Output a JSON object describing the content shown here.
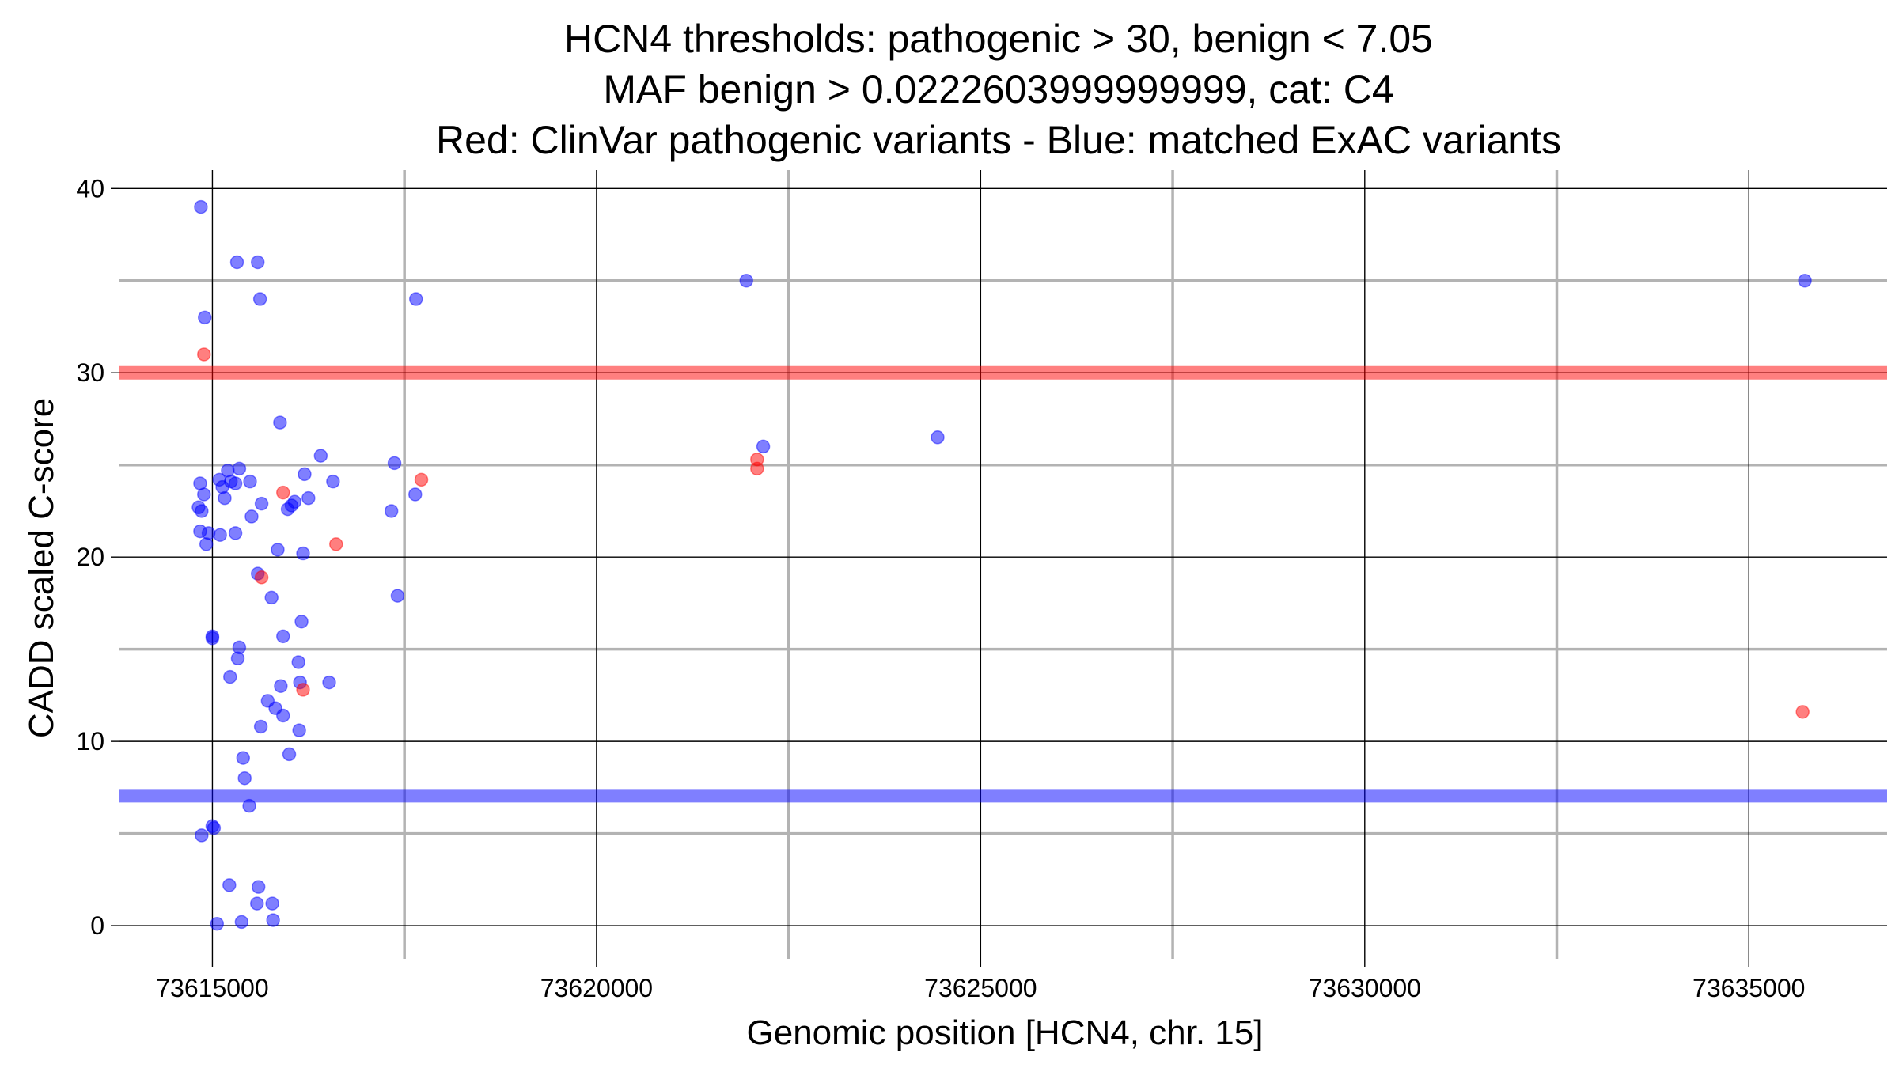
{
  "chart_data": {
    "type": "scatter",
    "title": [
      "HCN4 thresholds: pathogenic > 30, benign < 7.05",
      "MAF benign > 0.0222603999999999, cat: C4",
      "Red: ClinVar pathogenic variants - Blue: matched ExAC variants"
    ],
    "xlabel": "Genomic position [HCN4, chr. 15]",
    "ylabel": "CADD scaled C-score",
    "xlim": [
      73613780,
      73636800
    ],
    "ylim": [
      -1.8,
      41
    ],
    "xticks": [
      73615000,
      73620000,
      73625000,
      73630000,
      73635000
    ],
    "xtick_labels": [
      "73615000",
      "73620000",
      "73625000",
      "73630000",
      "73635000"
    ],
    "x_minor_gridlines": [
      73617500,
      73622500,
      73627500,
      73632500
    ],
    "yticks": [
      0,
      10,
      20,
      30,
      40
    ],
    "ytick_labels": [
      "0",
      "10",
      "20",
      "30",
      "40"
    ],
    "y_minor_gridlines": [
      5,
      15,
      25,
      35
    ],
    "grid": true,
    "thresholds": [
      {
        "name": "pathogenic",
        "value": 30,
        "color": "#ff0000"
      },
      {
        "name": "benign",
        "value": 7.05,
        "color": "#0000ff"
      }
    ],
    "series": [
      {
        "color": "#0000ff",
        "points": [
          [
            73614850,
            39
          ],
          [
            73614900,
            33
          ],
          [
            73614840,
            24
          ],
          [
            73614890,
            23.4
          ],
          [
            73614860,
            22.5
          ],
          [
            73614820,
            22.7
          ],
          [
            73614840,
            21.4
          ],
          [
            73614950,
            21.3
          ],
          [
            73614920,
            20.7
          ],
          [
            73615000,
            15.7
          ],
          [
            73615000,
            15.6
          ],
          [
            73615000,
            5.4
          ],
          [
            73615020,
            5.3
          ],
          [
            73614860,
            4.9
          ],
          [
            73615060,
            0.1
          ],
          [
            73615090,
            24.2
          ],
          [
            73615130,
            23.8
          ],
          [
            73615200,
            24.7
          ],
          [
            73615240,
            24.1
          ],
          [
            73615300,
            24
          ],
          [
            73615160,
            23.2
          ],
          [
            73615100,
            21.2
          ],
          [
            73615350,
            24.8
          ],
          [
            73615300,
            21.3
          ],
          [
            73615350,
            15.1
          ],
          [
            73615330,
            14.5
          ],
          [
            73615230,
            13.5
          ],
          [
            73615400,
            9.1
          ],
          [
            73615420,
            8
          ],
          [
            73615480,
            6.5
          ],
          [
            73615220,
            2.2
          ],
          [
            73615600,
            2.1
          ],
          [
            73615380,
            0.2
          ],
          [
            73615580,
            1.2
          ],
          [
            73615780,
            1.2
          ],
          [
            73615790,
            0.3
          ],
          [
            73615320,
            36
          ],
          [
            73615590,
            36
          ],
          [
            73615620,
            34
          ],
          [
            73615490,
            24.1
          ],
          [
            73615510,
            22.2
          ],
          [
            73615640,
            22.9
          ],
          [
            73615590,
            19.1
          ],
          [
            73615770,
            17.8
          ],
          [
            73615630,
            10.8
          ],
          [
            73615720,
            12.2
          ],
          [
            73615820,
            11.8
          ],
          [
            73615920,
            11.4
          ],
          [
            73615890,
            13
          ],
          [
            73615880,
            27.3
          ],
          [
            73615920,
            15.7
          ],
          [
            73615850,
            20.4
          ],
          [
            73615980,
            22.6
          ],
          [
            73616030,
            22.8
          ],
          [
            73616070,
            23
          ],
          [
            73616120,
            14.3
          ],
          [
            73616140,
            13.2
          ],
          [
            73616130,
            10.6
          ],
          [
            73616180,
            20.2
          ],
          [
            73616160,
            16.5
          ],
          [
            73616200,
            24.5
          ],
          [
            73616250,
            23.2
          ],
          [
            73616410,
            25.5
          ],
          [
            73616570,
            24.1
          ],
          [
            73616520,
            13.2
          ],
          [
            73616000,
            9.3
          ],
          [
            73617370,
            25.1
          ],
          [
            73617330,
            22.5
          ],
          [
            73617410,
            17.9
          ],
          [
            73617650,
            34
          ],
          [
            73617640,
            23.4
          ],
          [
            73621950,
            35
          ],
          [
            73622170,
            26
          ],
          [
            73624440,
            26.5
          ],
          [
            73635730,
            35
          ]
        ]
      },
      {
        "color": "#ff0000",
        "points": [
          [
            73614890,
            31
          ],
          [
            73615920,
            23.5
          ],
          [
            73615640,
            18.9
          ],
          [
            73616180,
            12.8
          ],
          [
            73616610,
            20.7
          ],
          [
            73617720,
            24.2
          ],
          [
            73622090,
            25.3
          ],
          [
            73622090,
            24.8
          ],
          [
            73635700,
            11.6
          ]
        ]
      }
    ]
  }
}
